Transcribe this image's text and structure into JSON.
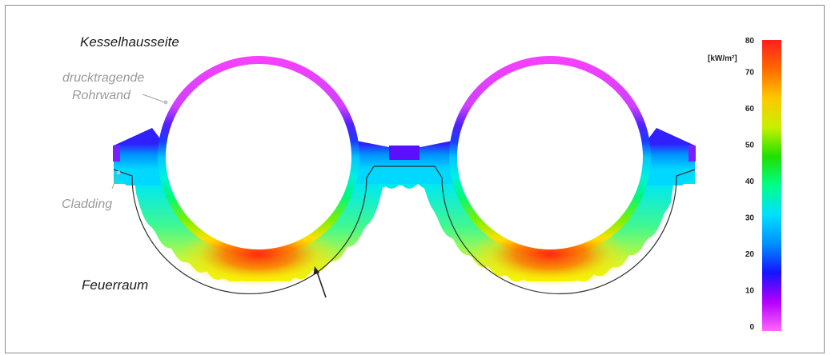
{
  "labels": {
    "top": "Kesselhausseite",
    "wall_line1": "drucktragende",
    "wall_line2": "Rohrwand",
    "cladding": "Cladding",
    "bottom": "Feuerraum"
  },
  "colorbar": {
    "unit": "[kW/m²]",
    "min": 0,
    "max": 80,
    "ticks": [
      "0",
      "10",
      "20",
      "30",
      "40",
      "50",
      "60",
      "70",
      "80"
    ],
    "stops": [
      "#ff66ff",
      "#b400ff",
      "#1414ff",
      "#0090ff",
      "#00e0ff",
      "#00ff88",
      "#20e000",
      "#c8f000",
      "#ffc800",
      "#ff6a00",
      "#ff1e1e"
    ]
  },
  "colors": {
    "frame": "#8a8a8a",
    "heat_max": "#ff3a1a",
    "heat_cold": "#c050ff"
  }
}
